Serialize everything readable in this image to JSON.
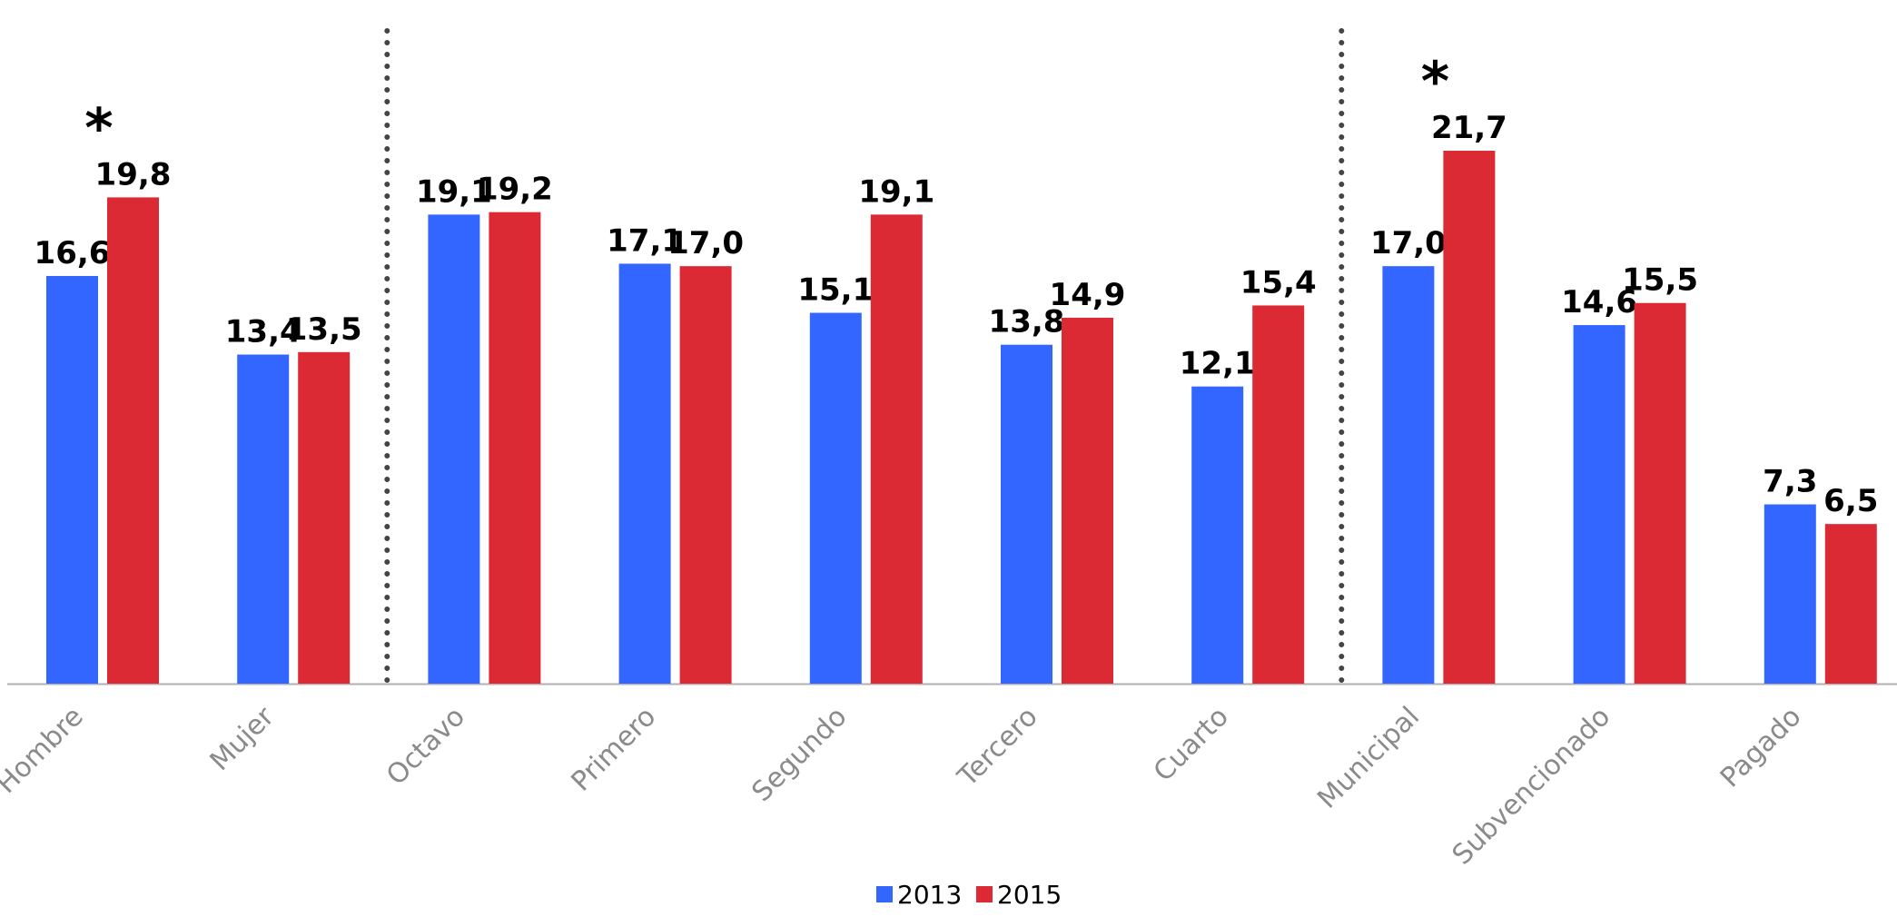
{
  "chart_data": {
    "type": "bar",
    "title": "",
    "xlabel": "",
    "ylabel": "",
    "ylim": [
      0,
      22.5
    ],
    "grid": false,
    "legend": "bottom",
    "categories": [
      "Hombre",
      "Mujer",
      "Octavo",
      "Primero",
      "Segundo",
      "Tercero",
      "Cuarto",
      "Municipal",
      "Subvencionado",
      "Pagado"
    ],
    "series": [
      {
        "name": "2013",
        "color": "#3366FF",
        "values": [
          16.6,
          13.4,
          19.1,
          17.1,
          15.1,
          13.8,
          12.1,
          17.0,
          14.6,
          7.3
        ],
        "labels": [
          "16,6",
          "13,4",
          "19,1",
          "17,1",
          "15,1",
          "13,8",
          "12,1",
          "17,0",
          "14,6",
          "7,3"
        ]
      },
      {
        "name": "2015",
        "color": "#DC2A34",
        "values": [
          19.8,
          13.5,
          19.2,
          17.0,
          19.1,
          14.9,
          15.4,
          21.7,
          15.5,
          6.5
        ],
        "labels": [
          "19,8",
          "13,5",
          "19,2",
          "17,0",
          "19,1",
          "14,9",
          "15,4",
          "21,7",
          "15,5",
          "6,5"
        ]
      }
    ],
    "group_separators_after": [
      "Mujer",
      "Cuarto"
    ],
    "annotations": [
      {
        "text": "*",
        "category": "Hombre"
      },
      {
        "text": "*",
        "category": "Municipal"
      }
    ]
  }
}
